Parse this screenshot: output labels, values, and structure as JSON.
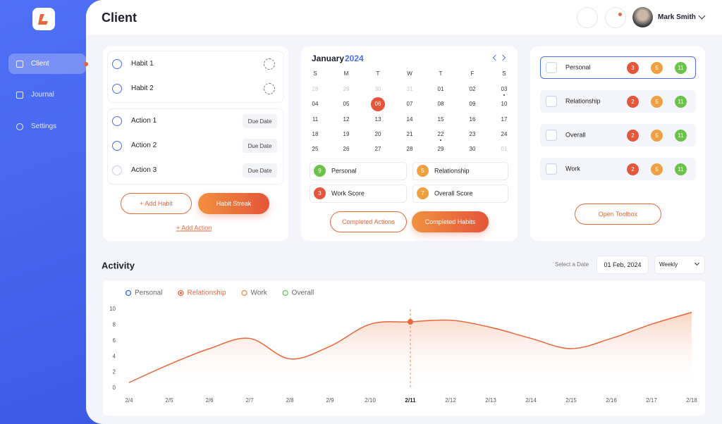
{
  "sidebar": {
    "nav": [
      "Client",
      "Journal",
      "Settings"
    ]
  },
  "header": {
    "title": "Client",
    "user": "Mark Smith"
  },
  "habits_card": {
    "habits": [
      "Habit 1",
      "Habit 2"
    ],
    "actions": [
      {
        "label": "Action 1",
        "due": "Due Date"
      },
      {
        "label": "Action 2",
        "due": "Due Date"
      },
      {
        "label": "Action 3",
        "due": "Due Date"
      }
    ],
    "add_habit": "+ Add Habit",
    "habit_streak": "Habit Streak",
    "add_action": "+ Add Action"
  },
  "calendar": {
    "month": "January",
    "year": "2024",
    "weekdays": [
      "S",
      "M",
      "T",
      "W",
      "T",
      "F",
      "S"
    ],
    "weeks": [
      [
        "28",
        "29",
        "30",
        "31",
        "01",
        "02",
        "03"
      ],
      [
        "04",
        "05",
        "06",
        "07",
        "08",
        "09",
        "10"
      ],
      [
        "11",
        "12",
        "13",
        "14",
        "15",
        "16",
        "17"
      ],
      [
        "18",
        "19",
        "20",
        "21",
        "22",
        "23",
        "24"
      ],
      [
        "25",
        "26",
        "27",
        "28",
        "29",
        "30",
        "01"
      ]
    ],
    "scores": [
      {
        "value": 9,
        "label": "Personal"
      },
      {
        "value": 5,
        "label": "Relationship"
      },
      {
        "value": 3,
        "label": "Work Score"
      },
      {
        "value": 7,
        "label": "Overall Score"
      }
    ],
    "buttons": [
      "Completed Actions",
      "Completed Habits"
    ]
  },
  "categories_card": {
    "rows": [
      {
        "label": "Personal",
        "counts": [
          3,
          5,
          11
        ]
      },
      {
        "label": "Relationship",
        "counts": [
          2,
          5,
          11
        ]
      },
      {
        "label": "Overall",
        "counts": [
          2,
          5,
          11
        ]
      },
      {
        "label": "Work",
        "counts": [
          2,
          5,
          11
        ]
      }
    ],
    "button": "Open Toolbox"
  },
  "activity": {
    "title": "Activity",
    "date_label": "Select a Date",
    "date": "01 Feb, 2024",
    "period": "Weekly"
  },
  "chart_data": {
    "type": "line",
    "categories": [
      "2/4",
      "2/5",
      "2/6",
      "2/7",
      "2/8",
      "2/9",
      "2/10",
      "2/11",
      "2/12",
      "2/13",
      "2/14",
      "2/15",
      "2/16",
      "2/17",
      "2/18"
    ],
    "series": [
      {
        "name": "Personal",
        "color": "#3f63e6"
      },
      {
        "name": "Relationship",
        "color": "#e8673a",
        "values": [
          0.7,
          3.0,
          5.0,
          6.3,
          3.7,
          5.3,
          8.1,
          8.4,
          8.6,
          7.7,
          6.3,
          5.0,
          6.3,
          8.1,
          9.6
        ]
      },
      {
        "name": "Work",
        "color": "#ef8a4a"
      },
      {
        "name": "Overall",
        "color": "#6cc24a"
      }
    ],
    "ylim": [
      0,
      10
    ],
    "yticks": [
      0,
      2,
      4,
      6,
      8,
      10
    ]
  }
}
